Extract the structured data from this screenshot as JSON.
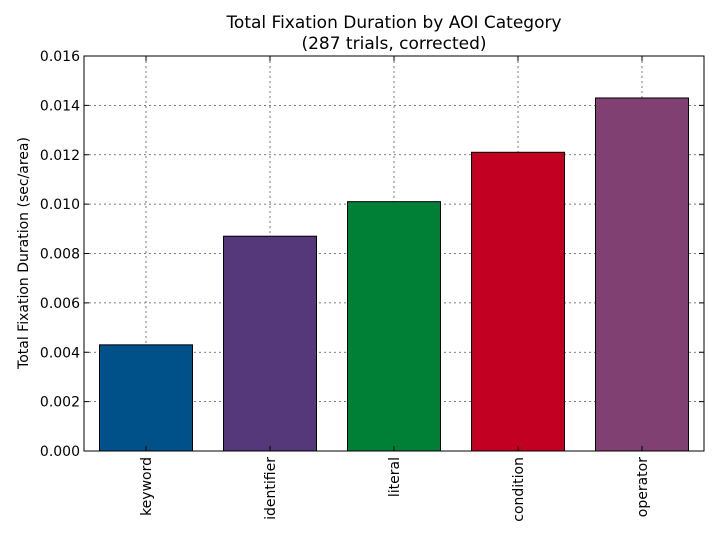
{
  "chart_data": {
    "type": "bar",
    "title": "Total Fixation Duration by AOI Category",
    "subtitle": "(287 trials, corrected)",
    "xlabel": "",
    "ylabel": "Total Fixation Duration (sec/area)",
    "ylim": [
      0,
      0.016
    ],
    "yticks": [
      "0.000",
      "0.002",
      "0.004",
      "0.006",
      "0.008",
      "0.010",
      "0.012",
      "0.014",
      "0.016"
    ],
    "grid": true,
    "categories": [
      "keyword",
      "identifier",
      "literal",
      "condition",
      "operator"
    ],
    "values": [
      0.0043,
      0.0087,
      0.0101,
      0.0121,
      0.0143
    ],
    "colors": [
      "#00508a",
      "#55387a",
      "#007f36",
      "#c20022",
      "#804172"
    ]
  }
}
